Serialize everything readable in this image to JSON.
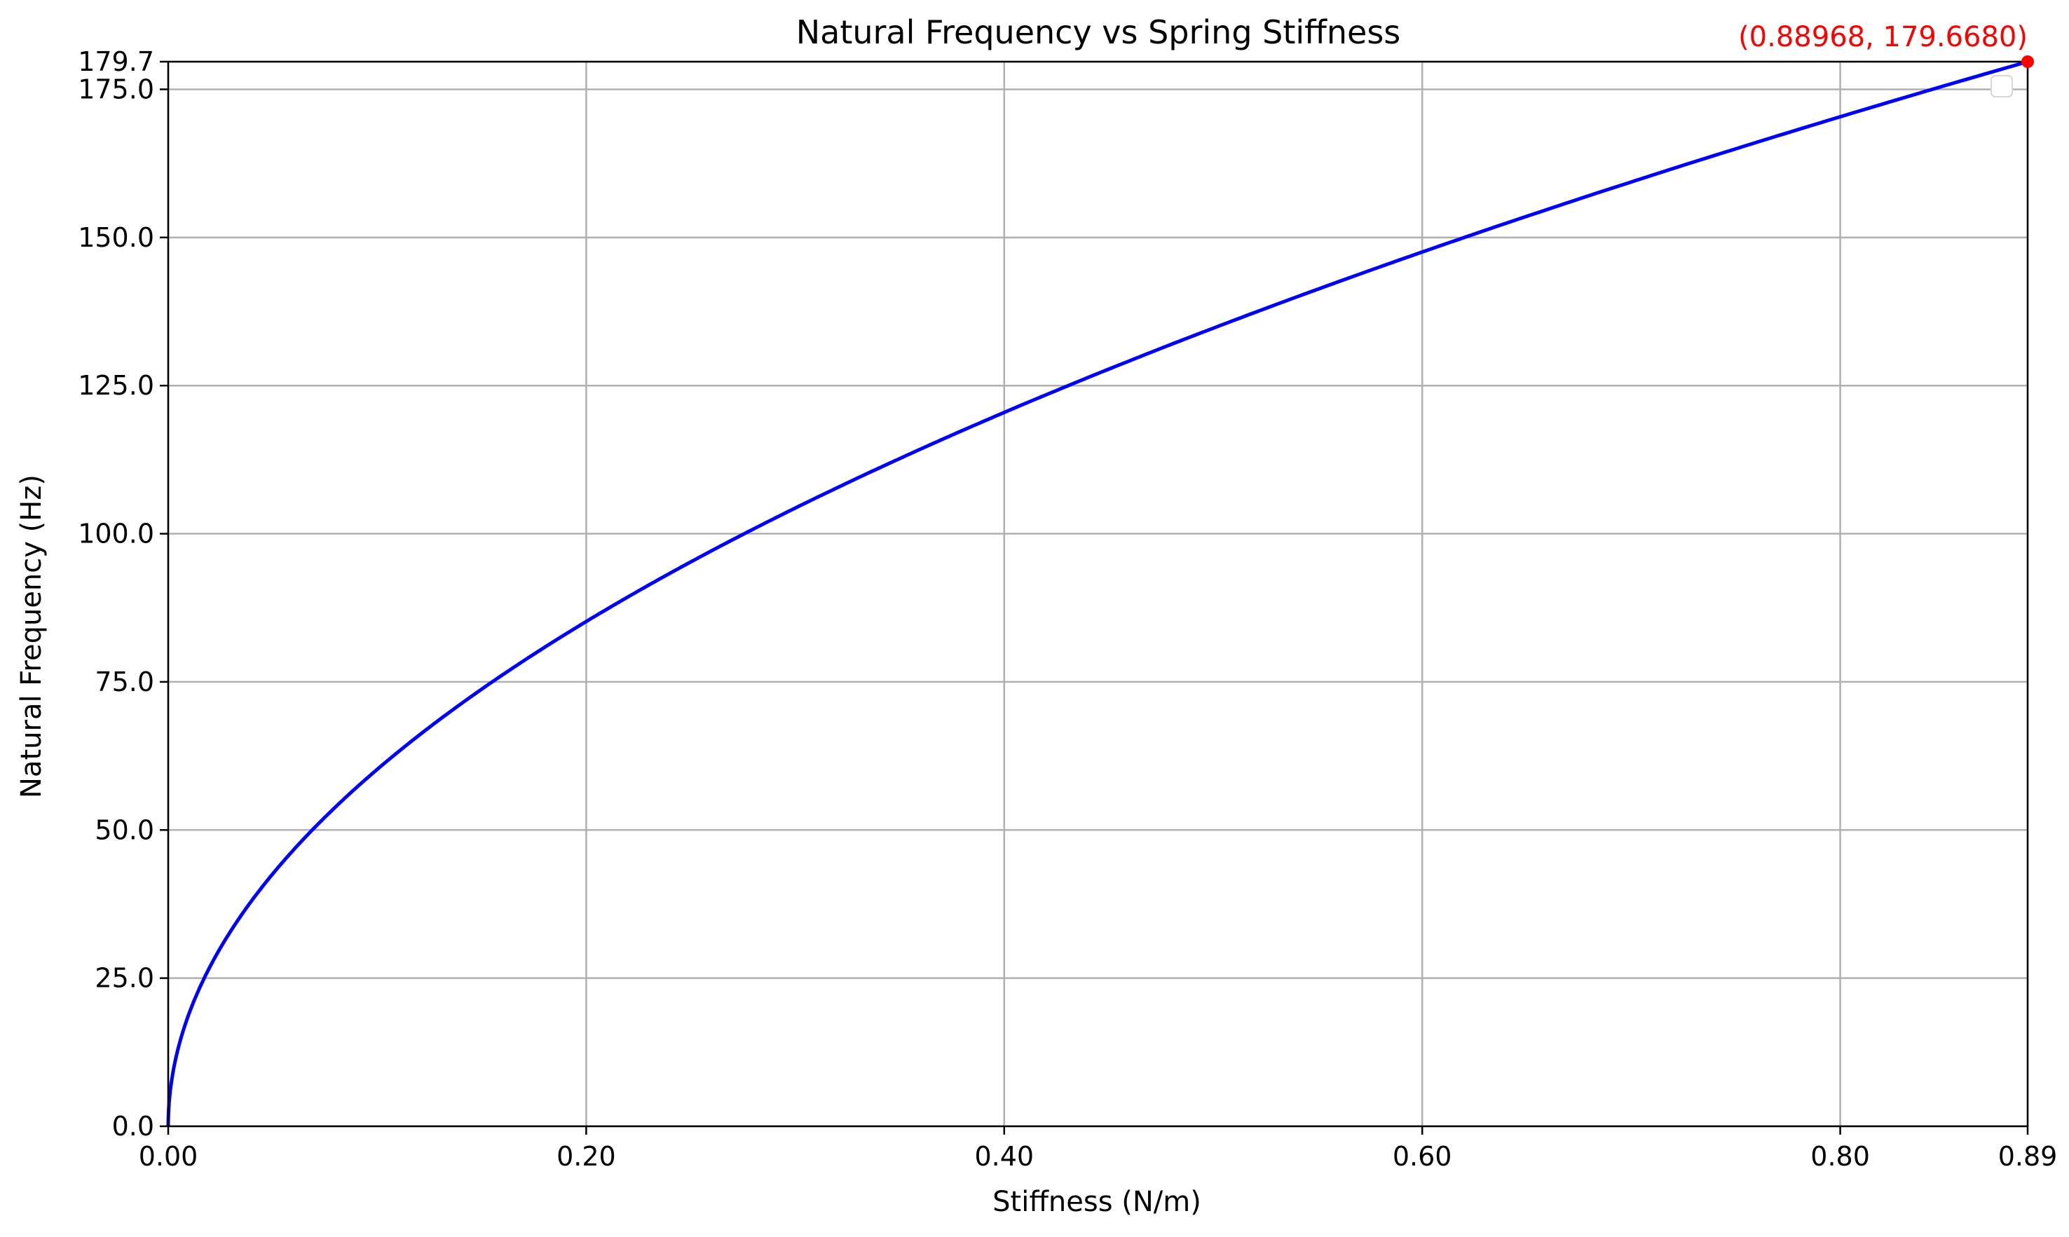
{
  "chart_data": {
    "type": "line",
    "title": "Natural Frequency vs Spring Stiffness",
    "xlabel": "Stiffness (N/m)",
    "ylabel": "Natural Frequency (Hz)",
    "xlim": [
      0,
      0.88968
    ],
    "ylim": [
      0,
      179.668
    ],
    "grid": true,
    "x_ticks": [
      {
        "value": 0,
        "label": "0.00"
      },
      {
        "value": 0.2,
        "label": "0.20"
      },
      {
        "value": 0.4,
        "label": "0.40"
      },
      {
        "value": 0.6,
        "label": "0.60"
      },
      {
        "value": 0.8,
        "label": "0.80"
      },
      {
        "value": 0.88968,
        "label": "0.89"
      }
    ],
    "y_ticks": [
      {
        "value": 0,
        "label": "0.0"
      },
      {
        "value": 25,
        "label": "25.0"
      },
      {
        "value": 50,
        "label": "50.0"
      },
      {
        "value": 75,
        "label": "75.0"
      },
      {
        "value": 100,
        "label": "100.0"
      },
      {
        "value": 125,
        "label": "125.0"
      },
      {
        "value": 150,
        "label": "150.0"
      },
      {
        "value": 175,
        "label": "175.0"
      },
      {
        "value": 179.668,
        "label": "179.7"
      }
    ],
    "series": [
      {
        "color": "#0000ff",
        "x": [
          0,
          0.002,
          0.005,
          0.01,
          0.02,
          0.03,
          0.05,
          0.07,
          0.1,
          0.15,
          0.2,
          0.25,
          0.3,
          0.35,
          0.4,
          0.45,
          0.5,
          0.55,
          0.6,
          0.65,
          0.7,
          0.75,
          0.8,
          0.85,
          0.88968
        ],
        "y": [
          0,
          8.52,
          13.47,
          19.05,
          26.94,
          32.99,
          42.59,
          50.4,
          60.23,
          73.77,
          85.19,
          95.24,
          104.33,
          112.69,
          120.47,
          127.78,
          134.69,
          141.26,
          147.54,
          153.57,
          159.37,
          164.96,
          170.37,
          175.62,
          179.668
        ]
      }
    ],
    "highlight_point": {
      "x": 0.88968,
      "y": 179.668,
      "label": "(0.88968, 179.6680)",
      "color": "#ff0000"
    },
    "legend": {
      "location": "upper right",
      "entries": []
    },
    "colors": {
      "grid": "#b0b0b0",
      "axes": "#000000",
      "annotation": "#ff0000"
    }
  }
}
